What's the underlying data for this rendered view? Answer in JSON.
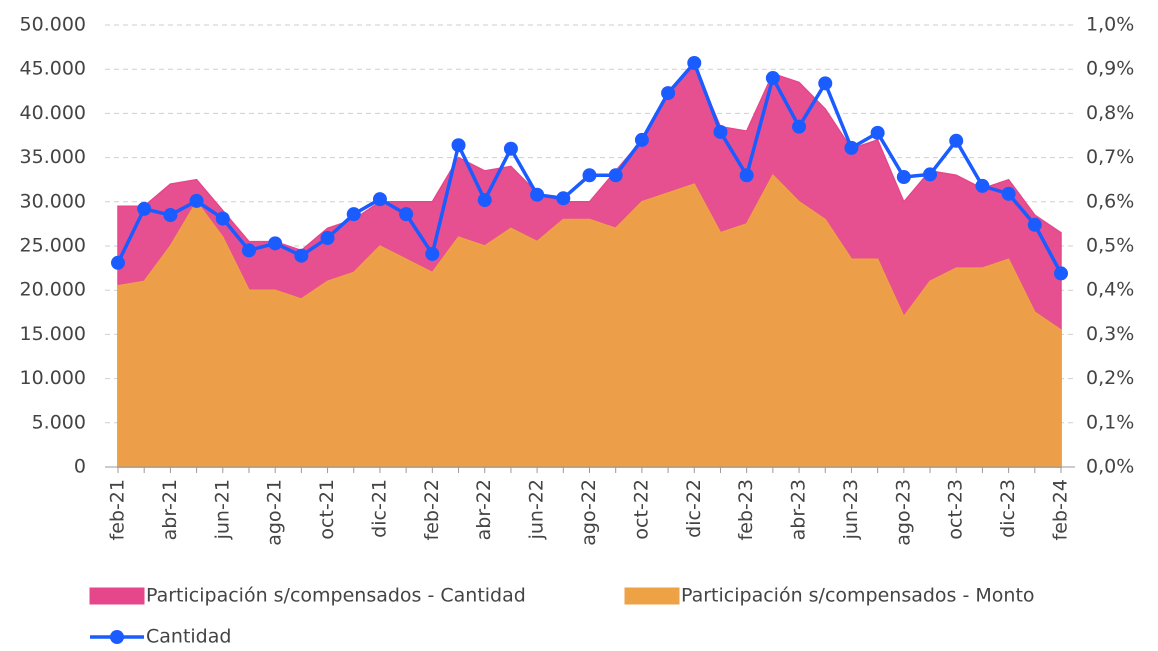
{
  "chart_data": {
    "type": "combo",
    "categories": [
      "feb-21",
      null,
      "abr-21",
      null,
      "jun-21",
      null,
      "ago-21",
      null,
      "oct-21",
      null,
      "dic-21",
      null,
      "feb-22",
      null,
      "abr-22",
      null,
      "jun-22",
      null,
      "ago-22",
      null,
      "oct-22",
      null,
      "dic-22",
      null,
      "feb-23",
      null,
      "abr-23",
      null,
      "jun-23",
      null,
      "ago-23",
      null,
      "oct-23",
      null,
      "dic-23",
      null,
      "feb-24"
    ],
    "series": [
      {
        "name": "Participación s/compensados - Cantidad",
        "type": "area",
        "axis": "y2",
        "color": "#e5478a",
        "values": [
          0.59,
          0.59,
          0.64,
          0.65,
          0.58,
          0.51,
          0.51,
          0.49,
          0.54,
          0.56,
          0.6,
          0.6,
          0.6,
          0.7,
          0.67,
          0.68,
          0.62,
          0.6,
          0.6,
          0.67,
          0.74,
          0.85,
          0.91,
          0.77,
          0.76,
          0.89,
          0.87,
          0.81,
          0.72,
          0.74,
          0.6,
          0.67,
          0.66,
          0.63,
          0.65,
          0.57,
          0.53
        ]
      },
      {
        "name": "Participación s/compensados - Monto",
        "type": "area",
        "axis": "y2",
        "color": "#eda245",
        "values": [
          0.41,
          0.42,
          0.5,
          0.6,
          0.52,
          0.4,
          0.4,
          0.38,
          0.42,
          0.44,
          0.5,
          0.47,
          0.44,
          0.52,
          0.5,
          0.54,
          0.51,
          0.56,
          0.56,
          0.54,
          0.6,
          0.62,
          0.64,
          0.53,
          0.55,
          0.66,
          0.6,
          0.56,
          0.47,
          0.47,
          0.34,
          0.42,
          0.45,
          0.45,
          0.47,
          0.35,
          0.31
        ]
      },
      {
        "name": "Cantidad",
        "type": "line",
        "axis": "y",
        "color": "#1a5cff",
        "values": [
          23100,
          29200,
          28500,
          30100,
          28100,
          24500,
          25300,
          23900,
          25900,
          28600,
          30300,
          28600,
          24100,
          36400,
          30200,
          36000,
          30800,
          30400,
          33000,
          33000,
          37000,
          42300,
          45700,
          37900,
          33000,
          44000,
          38500,
          43400,
          36100,
          37800,
          32800,
          33100,
          36900,
          31800,
          30900,
          27400,
          21900
        ]
      }
    ],
    "ylim": [
      0,
      50000
    ],
    "yticks": [
      0,
      {
        "value": 5000,
        "label": "5.000"
      },
      {
        "value": 10000,
        "label": "10.000"
      },
      {
        "value": 15000,
        "label": "15.000"
      },
      {
        "value": 20000,
        "label": "20.000"
      },
      {
        "value": 25000,
        "label": "25.000"
      },
      {
        "value": 30000,
        "label": "30.000"
      },
      {
        "value": 35000,
        "label": "35.000"
      },
      {
        "value": 40000,
        "label": "40.000"
      },
      {
        "value": 45000,
        "label": "45.000"
      },
      {
        "value": 50000,
        "label": "50.000"
      }
    ],
    "y2lim": [
      0,
      1
    ],
    "y2ticks": [
      {
        "value": 0,
        "label": "0,0%"
      },
      {
        "value": 0.1,
        "label": "0,1%"
      },
      {
        "value": 0.2,
        "label": "0,2%"
      },
      {
        "value": 0.3,
        "label": "0,3%"
      },
      {
        "value": 0.4,
        "label": "0,4%"
      },
      {
        "value": 0.5,
        "label": "0,5%"
      },
      {
        "value": 0.6,
        "label": "0,6%"
      },
      {
        "value": 0.7,
        "label": "0,7%"
      },
      {
        "value": 0.8,
        "label": "0,8%"
      },
      {
        "value": 0.9,
        "label": "0,9%"
      },
      {
        "value": 1,
        "label": "1,0%"
      }
    ],
    "grid": true
  }
}
